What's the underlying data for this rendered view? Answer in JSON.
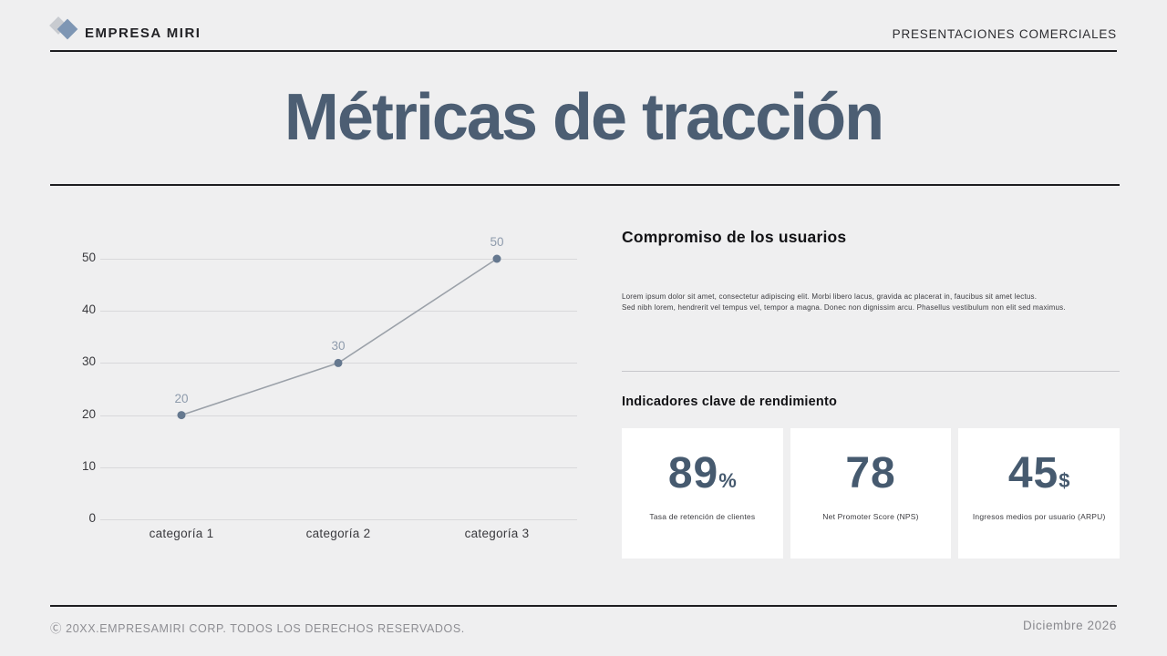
{
  "header": {
    "brand": "EMPRESA MIRI",
    "tagline": "PRESENTACIONES COMERCIALES",
    "logo_icon": "two-overlapping-diamonds"
  },
  "title": "Métricas de tracción",
  "engagement": {
    "heading": "Compromiso de los usuarios",
    "body_line1": "Lorem ipsum dolor sit amet, consectetur adipiscing elit. Morbi libero lacus, gravida ac placerat in, faucibus sit amet lectus.",
    "body_line2": "Sed nibh lorem, hendrerit vel tempus vel, tempor a magna. Donec non dignissim arcu. Phasellus vestibulum non elit sed maximus."
  },
  "kpi": {
    "heading": "Indicadores clave de rendimiento",
    "cards": [
      {
        "value": "89",
        "suffix": "%",
        "label": "Tasa de retención de clientes"
      },
      {
        "value": "78",
        "suffix": "",
        "label": "Net Promoter Score (NPS)"
      },
      {
        "value": "45",
        "suffix": "$",
        "label": "Ingresos medios por usuario (ARPU)"
      }
    ]
  },
  "chart_data": {
    "type": "line",
    "title": "",
    "xlabel": "",
    "ylabel": "",
    "categories": [
      "categoría 1",
      "categoría 2",
      "categoría 3"
    ],
    "values": [
      20,
      30,
      50
    ],
    "point_labels": [
      "20",
      "30",
      "50"
    ],
    "yticks": [
      0,
      10,
      20,
      30,
      40,
      50
    ],
    "ylim": [
      0,
      50
    ],
    "grid": true,
    "legend": false
  },
  "footer": {
    "copyright": "Ⓒ 20XX.EMPRESAMIRI CORP. TODOS LOS DERECHOS RESERVADOS.",
    "date": "Diciembre 2026"
  },
  "colors": {
    "page_bg": "#efeff0",
    "title": "#4c5e73",
    "kpi_number": "#465a6f",
    "line": "#9ba1a9",
    "point": "#65788f",
    "point_label": "#8e9bac",
    "gridline": "#d8d8db",
    "dark_rule": "#1d1d20",
    "light_rule": "#c7c7cb",
    "card_bg": "#ffffff",
    "footer_text": "#8e8e93",
    "logo_back": "#c8cbd0",
    "logo_front": "#7e96b4"
  }
}
